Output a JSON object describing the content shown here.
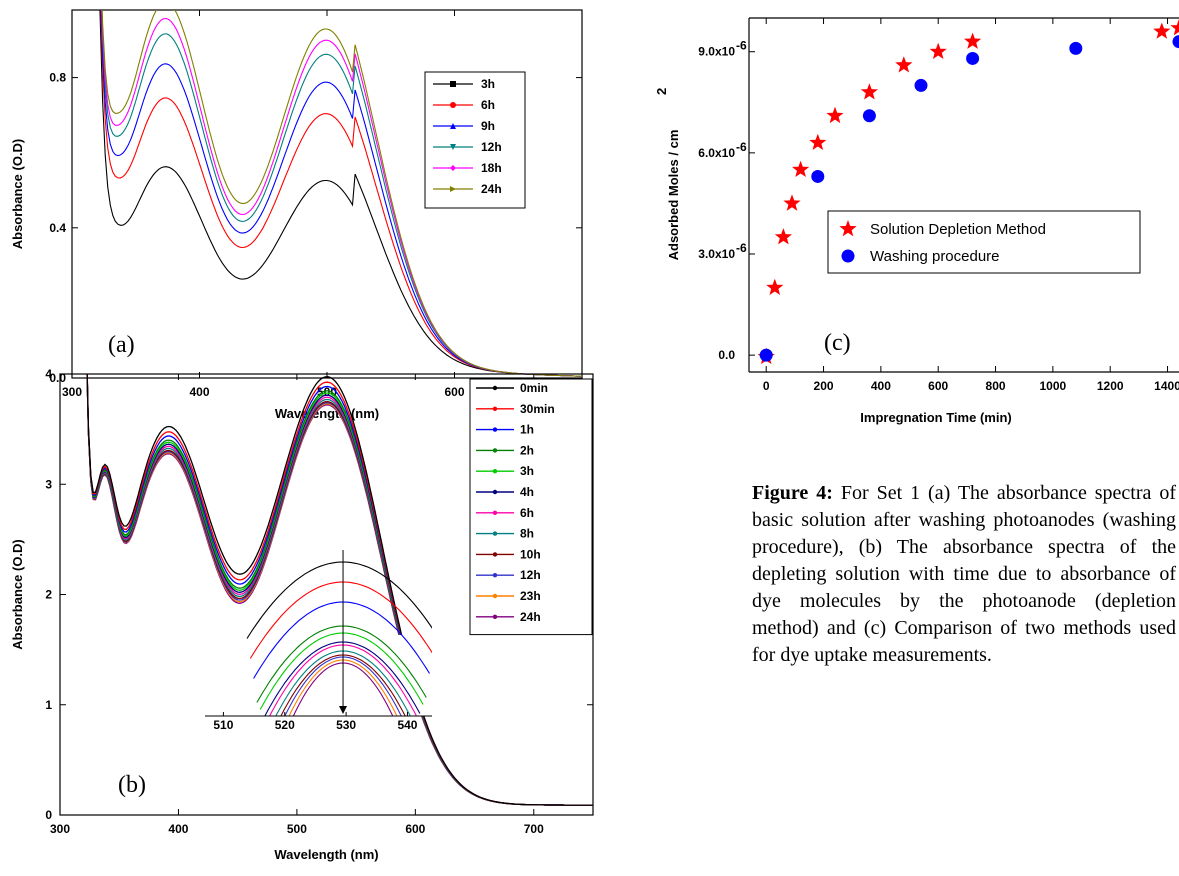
{
  "caption": {
    "label": "Figure 4:",
    "text": "For Set 1 (a) The absorbance spectra of basic solution after washing photoanodes (washing procedure), (b) The absorbance spectra of the depleting solution with time due to absorbance of dye molecules by the photoanode (depletion method) and (c) Comparison of two methods used for dye uptake measurements."
  },
  "chart_data": [
    {
      "id": "a",
      "type": "line",
      "panel_label": "(a)",
      "xlabel": "Wavelength (nm)",
      "ylabel": "Absorbance (O.D)",
      "xlim": [
        300,
        700
      ],
      "ylim": [
        0.0,
        0.98
      ],
      "xticks": [
        300,
        400,
        500,
        600,
        700
      ],
      "yticks": [
        0.0,
        0.4,
        0.8
      ],
      "ytick_labels": [
        "0.0",
        "0.4",
        "0.8"
      ],
      "legend_position": "top-right",
      "series": [
        {
          "name": "3h",
          "color": "#000000",
          "marker": "square",
          "peak1": 0.55,
          "valley": 0.29,
          "peak2": 0.56,
          "min330": 0.3
        },
        {
          "name": "6h",
          "color": "#ff0000",
          "marker": "circle",
          "peak1": 0.73,
          "valley": 0.38,
          "peak2": 0.75,
          "min330": 0.4
        },
        {
          "name": "9h",
          "color": "#0000ff",
          "marker": "triangle",
          "peak1": 0.82,
          "valley": 0.42,
          "peak2": 0.84,
          "min330": 0.44
        },
        {
          "name": "12h",
          "color": "#008080",
          "marker": "triangle-down",
          "peak1": 0.9,
          "valley": 0.45,
          "peak2": 0.92,
          "min330": 0.47
        },
        {
          "name": "18h",
          "color": "#ff00ff",
          "marker": "diamond",
          "peak1": 0.94,
          "valley": 0.47,
          "peak2": 0.96,
          "min330": 0.5
        },
        {
          "name": "24h",
          "color": "#808000",
          "marker": "triangle-right",
          "peak1": 0.98,
          "valley": 0.51,
          "peak2": 0.99,
          "min330": 0.54
        }
      ]
    },
    {
      "id": "b",
      "type": "line",
      "panel_label": "(b)",
      "xlabel": "Wavelength (nm)",
      "ylabel": "Absorbance (O.D)",
      "xlim": [
        300,
        750
      ],
      "ylim": [
        0,
        4
      ],
      "xticks": [
        300,
        400,
        500,
        600,
        700
      ],
      "yticks": [
        0,
        1,
        2,
        3,
        4
      ],
      "legend_position": "top-right",
      "inset": {
        "xticks": [
          510,
          520,
          530,
          540
        ],
        "xlim": [
          507,
          544
        ]
      },
      "series": [
        {
          "name": "0min",
          "color": "#000000",
          "peak1": 3.75,
          "valley": 2.2,
          "peak2": 3.95
        },
        {
          "name": "30min",
          "color": "#ff0000",
          "peak1": 3.7,
          "valley": 2.17,
          "peak2": 3.9
        },
        {
          "name": "1h",
          "color": "#0000ff",
          "peak1": 3.66,
          "valley": 2.15,
          "peak2": 3.86
        },
        {
          "name": "2h",
          "color": "#008000",
          "peak1": 3.62,
          "valley": 2.13,
          "peak2": 3.82
        },
        {
          "name": "3h",
          "color": "#00cc00",
          "peak1": 3.6,
          "valley": 2.12,
          "peak2": 3.8
        },
        {
          "name": "4h",
          "color": "#000080",
          "peak1": 3.58,
          "valley": 2.11,
          "peak2": 3.78
        },
        {
          "name": "6h",
          "color": "#ff00aa",
          "peak1": 3.56,
          "valley": 2.1,
          "peak2": 3.76
        },
        {
          "name": "8h",
          "color": "#008080",
          "peak1": 3.54,
          "valley": 2.09,
          "peak2": 3.74
        },
        {
          "name": "10h",
          "color": "#800000",
          "peak1": 3.52,
          "valley": 2.08,
          "peak2": 3.72
        },
        {
          "name": "12h",
          "color": "#3333cc",
          "peak1": 3.51,
          "valley": 2.07,
          "peak2": 3.71
        },
        {
          "name": "23h",
          "color": "#ff8000",
          "peak1": 3.5,
          "valley": 2.06,
          "peak2": 3.7
        },
        {
          "name": "24h",
          "color": "#800080",
          "peak1": 3.49,
          "valley": 2.05,
          "peak2": 3.69
        }
      ]
    },
    {
      "id": "c",
      "type": "scatter",
      "panel_label": "(c)",
      "xlabel": "Impregnation Time (min)",
      "ylabel": "Adsorbed Moles / cm",
      "ylabel_sup": "2",
      "xlim": [
        -60,
        1440
      ],
      "ylim": [
        -5e-07,
        1e-05
      ],
      "xticks": [
        0,
        200,
        400,
        600,
        800,
        1000,
        1200,
        1400
      ],
      "yticks": [
        0,
        3e-06,
        6e-06,
        9e-06
      ],
      "ytick_labels": [
        "0.0",
        "3.0x10",
        "6.0x10",
        "9.0x10"
      ],
      "ytick_exp": [
        "",
        "-6",
        "-6",
        "-6"
      ],
      "legend_position": "center-right",
      "series": [
        {
          "name": "Solution Depletion Method",
          "color": "#ff0000",
          "marker": "star",
          "x": [
            0,
            30,
            60,
            90,
            120,
            180,
            240,
            360,
            480,
            600,
            720,
            1380,
            1440
          ],
          "y": [
            -5e-08,
            2e-06,
            3.5e-06,
            4.5e-06,
            5.5e-06,
            6.3e-06,
            7.1e-06,
            7.8e-06,
            8.6e-06,
            9e-06,
            9.3e-06,
            9.6e-06,
            9.7e-06
          ]
        },
        {
          "name": "Washing procedure",
          "color": "#0000ff",
          "marker": "circle",
          "x": [
            0,
            180,
            360,
            540,
            720,
            1080,
            1440
          ],
          "y": [
            0.0,
            5.3e-06,
            7.1e-06,
            8e-06,
            8.8e-06,
            9.1e-06,
            9.3e-06
          ]
        }
      ]
    }
  ]
}
